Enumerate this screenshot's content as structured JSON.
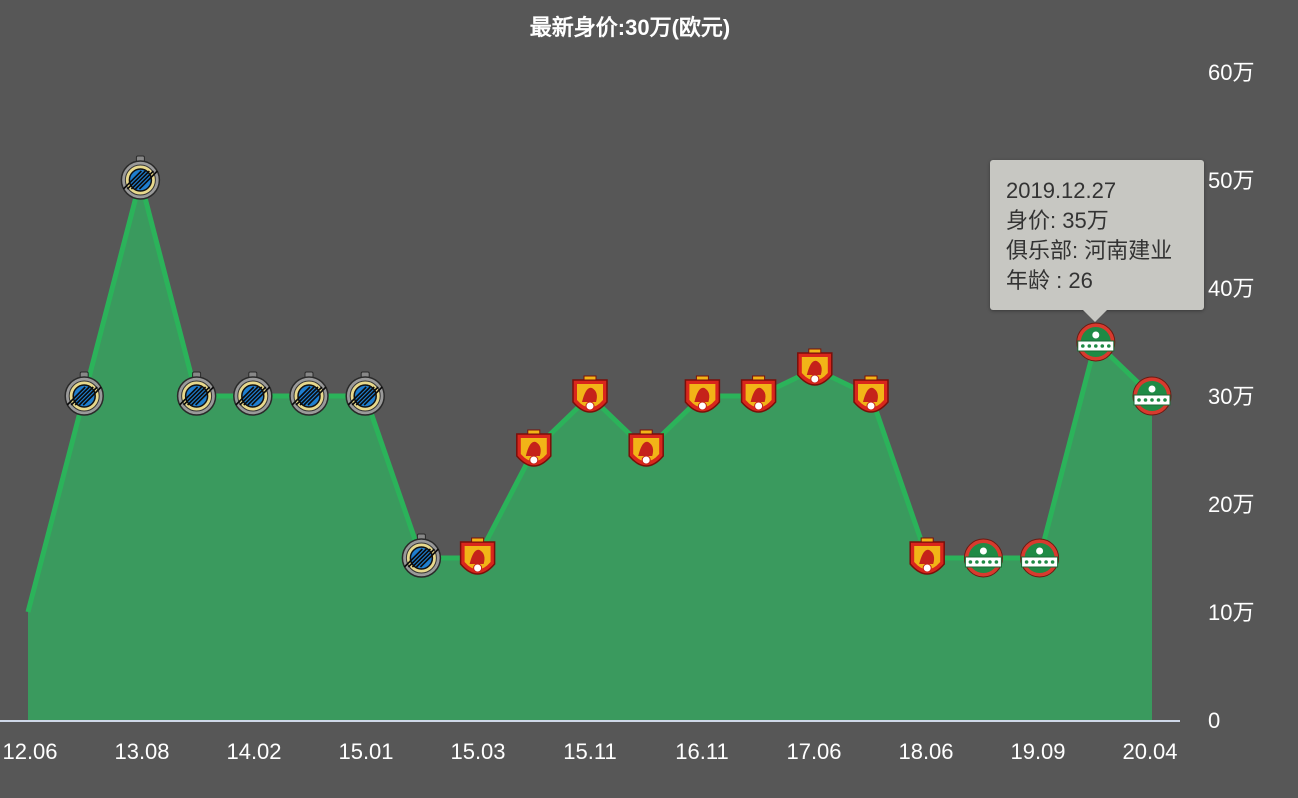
{
  "chart_data": {
    "type": "area",
    "title": "最新身价:30万(欧元)",
    "x_ticks": [
      "12.06",
      "13.08",
      "14.02",
      "15.01",
      "15.03",
      "15.11",
      "16.11",
      "17.06",
      "18.06",
      "19.09",
      "20.04"
    ],
    "y_ticks": [
      "0",
      "10万",
      "20万",
      "30万",
      "40万",
      "50万",
      "60万"
    ],
    "ylim": [
      0,
      60
    ],
    "grid": false,
    "series": [
      {
        "values": [
          10,
          30,
          50,
          30,
          30,
          30,
          30,
          15,
          15,
          25,
          30,
          25,
          30,
          30,
          32.5,
          30,
          15,
          15,
          15,
          35,
          30
        ],
        "clubs": [
          "",
          "club-brugge",
          "club-brugge",
          "club-brugge",
          "club-brugge",
          "club-brugge",
          "club-brugge",
          "club-brugge",
          "guangzhou",
          "guangzhou",
          "guangzhou",
          "guangzhou",
          "guangzhou",
          "guangzhou",
          "guangzhou",
          "guangzhou",
          "guangzhou",
          "henan-jianye",
          "henan-jianye",
          "henan-jianye",
          "henan-jianye"
        ]
      }
    ],
    "colors": {
      "line": "#2bb35a",
      "area": "#3a9a5e",
      "background": "#575757",
      "axis": "#cfd8e8"
    },
    "tooltip": {
      "date": "2019.12.27",
      "value_line": "身价: 35万",
      "club_line": "俱乐部: 河南建业",
      "age_line": "年龄 : 26",
      "point_index": 19
    }
  }
}
